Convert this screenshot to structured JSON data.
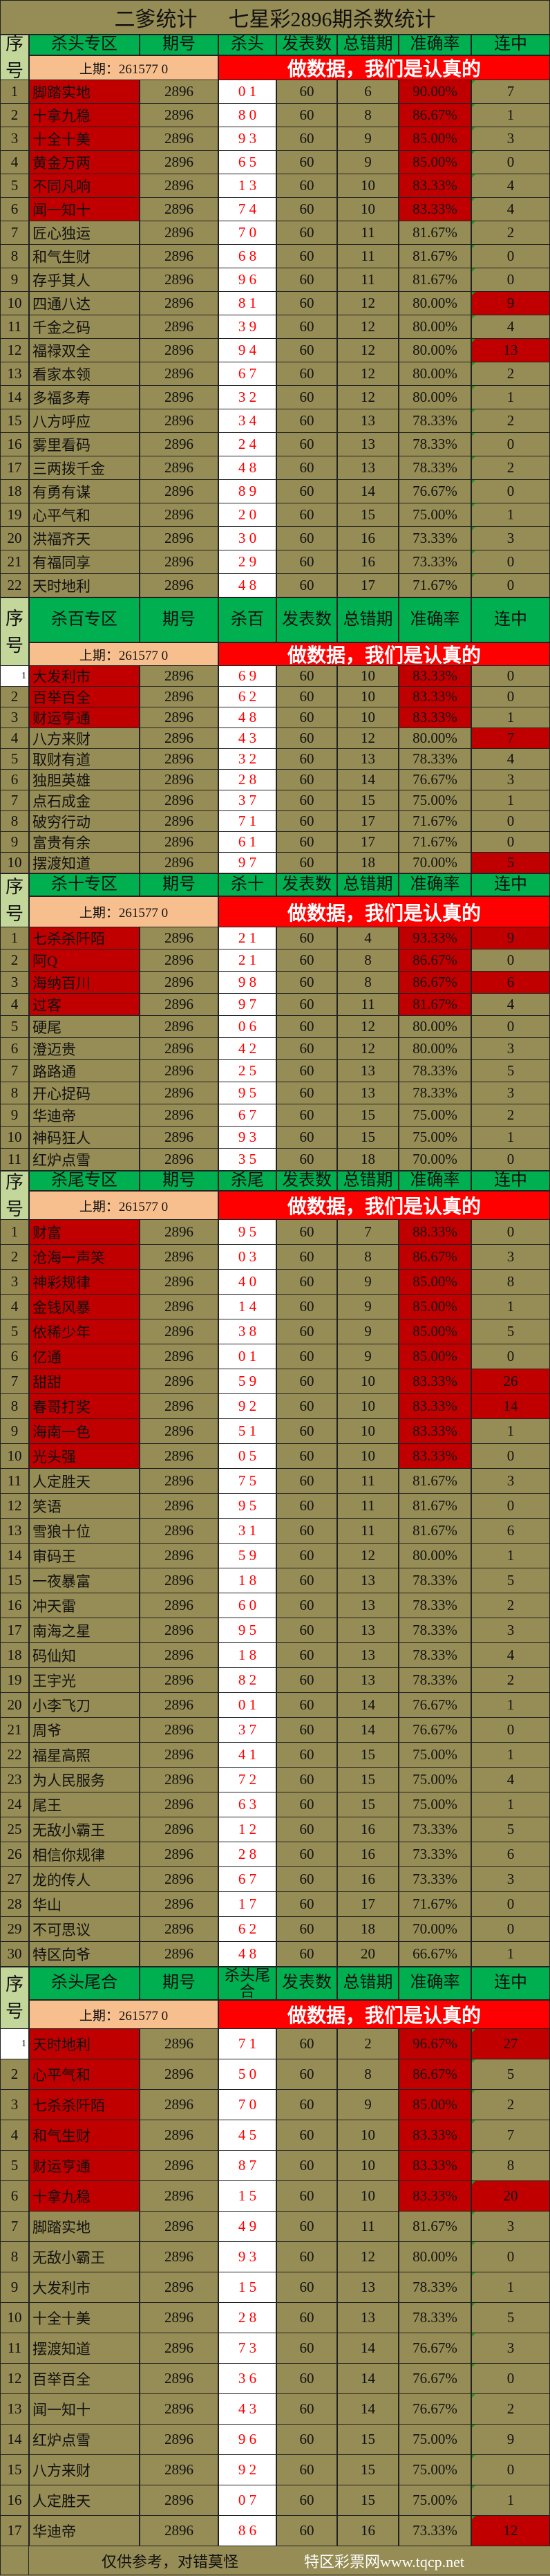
{
  "title": "二爹统计      七星彩2896期杀数统计",
  "columns": {
    "seq": [
      "序",
      "号"
    ],
    "period": "期号",
    "count": "发表数",
    "errors": "总错期",
    "rate": "准确率",
    "streak": "连中"
  },
  "prev_label": "上期：261577 0",
  "slogan": "做数据，我们是认真的",
  "colors": {
    "olive": "#968c55",
    "header_green": "#00b050",
    "highlight_red": "#c00000",
    "slogan_red": "#ff0000",
    "prev_peach": "#f8bf8e",
    "seq_green": "#c4d79b",
    "kill_text": "#ff0000"
  },
  "sections": [
    {
      "zone": "杀头专区",
      "kill_label": "杀头",
      "hot_rows": 6,
      "streak_hot": [
        10,
        12
      ],
      "rows": [
        [
          "1",
          "脚踏实地",
          "2896",
          "0 1",
          "60",
          "6",
          "90.00%",
          "7"
        ],
        [
          "2",
          "十拿九稳",
          "2896",
          "8 0",
          "60",
          "8",
          "86.67%",
          "1"
        ],
        [
          "3",
          "十全十美",
          "2896",
          "9 3",
          "60",
          "9",
          "85.00%",
          "3"
        ],
        [
          "4",
          "黄金万两",
          "2896",
          "6 5",
          "60",
          "9",
          "85.00%",
          "0"
        ],
        [
          "5",
          "不同凡响",
          "2896",
          "1 3",
          "60",
          "10",
          "83.33%",
          "4"
        ],
        [
          "6",
          "闻一知十",
          "2896",
          "7 4",
          "60",
          "10",
          "83.33%",
          "4"
        ],
        [
          "7",
          "匠心独运",
          "2896",
          "7 0",
          "60",
          "11",
          "81.67%",
          "2"
        ],
        [
          "8",
          "和气生财",
          "2896",
          "6 8",
          "60",
          "11",
          "81.67%",
          "0"
        ],
        [
          "9",
          "存乎其人",
          "2896",
          "9 6",
          "60",
          "11",
          "81.67%",
          "0"
        ],
        [
          "10",
          "四通八达",
          "2896",
          "8 1",
          "60",
          "12",
          "80.00%",
          "9"
        ],
        [
          "11",
          "千金之码",
          "2896",
          "3 9",
          "60",
          "12",
          "80.00%",
          "4"
        ],
        [
          "12",
          "福禄双全",
          "2896",
          "9 4",
          "60",
          "12",
          "80.00%",
          "13"
        ],
        [
          "13",
          "看家本领",
          "2896",
          "6 7",
          "60",
          "12",
          "80.00%",
          "2"
        ],
        [
          "14",
          "多福多寿",
          "2896",
          "3 2",
          "60",
          "12",
          "80.00%",
          "1"
        ],
        [
          "15",
          "八方呼应",
          "2896",
          "3 4",
          "60",
          "13",
          "78.33%",
          "2"
        ],
        [
          "16",
          "雾里看码",
          "2896",
          "2 4",
          "60",
          "13",
          "78.33%",
          "0"
        ],
        [
          "17",
          "三两拨千金",
          "2896",
          "4 8",
          "60",
          "13",
          "78.33%",
          "2"
        ],
        [
          "18",
          "有勇有谋",
          "2896",
          "8 9",
          "60",
          "14",
          "76.67%",
          "0"
        ],
        [
          "19",
          "心平气和",
          "2896",
          "2 0",
          "60",
          "15",
          "75.00%",
          "1"
        ],
        [
          "20",
          "洪福齐天",
          "2896",
          "3 0",
          "60",
          "16",
          "73.33%",
          "3"
        ],
        [
          "21",
          "有福同享",
          "2896",
          "2 9",
          "60",
          "16",
          "73.33%",
          "0"
        ],
        [
          "22",
          "天时地利",
          "2896",
          "4 8",
          "60",
          "17",
          "71.67%",
          "0"
        ]
      ]
    },
    {
      "zone": "杀百专区",
      "kill_label": "杀百",
      "hot_rows": 3,
      "streak_hot": [
        4,
        10
      ],
      "rows": [
        [
          "1",
          "大发利市",
          "2896",
          "6 9",
          "60",
          "10",
          "83.33%",
          "0"
        ],
        [
          "2",
          "百举百全",
          "2896",
          "6 2",
          "60",
          "10",
          "83.33%",
          "0"
        ],
        [
          "3",
          "财运亨通",
          "2896",
          "4 8",
          "60",
          "10",
          "83.33%",
          "1"
        ],
        [
          "4",
          "八方来财",
          "2896",
          "4 3",
          "60",
          "12",
          "80.00%",
          "7"
        ],
        [
          "5",
          "取财有道",
          "2896",
          "3 2",
          "60",
          "13",
          "78.33%",
          "4"
        ],
        [
          "6",
          "独胆英雄",
          "2896",
          "2 8",
          "60",
          "14",
          "76.67%",
          "3"
        ],
        [
          "7",
          "点石成金",
          "2896",
          "3 7",
          "60",
          "15",
          "75.00%",
          "1"
        ],
        [
          "8",
          "破穷行动",
          "2896",
          "7 1",
          "60",
          "17",
          "71.67%",
          "0"
        ],
        [
          "9",
          "富贵有余",
          "2896",
          "6 1",
          "60",
          "17",
          "71.67%",
          "0"
        ],
        [
          "10",
          "摆渡知道",
          "2896",
          "9 7",
          "60",
          "18",
          "70.00%",
          "5"
        ]
      ]
    },
    {
      "zone": "杀十专区",
      "kill_label": "杀十",
      "hot_rows": 4,
      "streak_hot": [
        1,
        3
      ],
      "rows": [
        [
          "1",
          "七杀杀阡陌",
          "2896",
          "2 1",
          "60",
          "4",
          "93.33%",
          "9"
        ],
        [
          "2",
          "阿Q",
          "2896",
          "2 1",
          "60",
          "8",
          "86.67%",
          "0"
        ],
        [
          "3",
          "海纳百川",
          "2896",
          "9 8",
          "60",
          "8",
          "86.67%",
          "6"
        ],
        [
          "4",
          "过客",
          "2896",
          "9 7",
          "60",
          "11",
          "81.67%",
          "4"
        ],
        [
          "5",
          "硬尾",
          "2896",
          "0 6",
          "60",
          "12",
          "80.00%",
          "0"
        ],
        [
          "6",
          "澄迈贵",
          "2896",
          "4 2",
          "60",
          "12",
          "80.00%",
          "3"
        ],
        [
          "7",
          "路路通",
          "2896",
          "2 5",
          "60",
          "13",
          "78.33%",
          "5"
        ],
        [
          "8",
          "开心捉码",
          "2896",
          "9 5",
          "60",
          "13",
          "78.33%",
          "3"
        ],
        [
          "9",
          "华迪帝",
          "2896",
          "6 7",
          "60",
          "15",
          "75.00%",
          "2"
        ],
        [
          "10",
          "神码狂人",
          "2896",
          "9 3",
          "60",
          "15",
          "75.00%",
          "1"
        ],
        [
          "11",
          "红炉点雪",
          "2896",
          "3 5",
          "60",
          "18",
          "70.00%",
          "0"
        ]
      ]
    },
    {
      "zone": "杀尾专区",
      "kill_label": "杀尾",
      "hot_rows": 10,
      "streak_hot": [
        7,
        8
      ],
      "rows": [
        [
          "1",
          "财富",
          "2896",
          "9 5",
          "60",
          "7",
          "88.33%",
          "0"
        ],
        [
          "2",
          "沧海一声笑",
          "2896",
          "0 3",
          "60",
          "8",
          "86.67%",
          "3"
        ],
        [
          "3",
          "神彩规律",
          "2896",
          "4 0",
          "60",
          "9",
          "85.00%",
          "8"
        ],
        [
          "4",
          "金钱风暴",
          "2896",
          "1 4",
          "60",
          "9",
          "85.00%",
          "1"
        ],
        [
          "5",
          "依稀少年",
          "2896",
          "3 8",
          "60",
          "9",
          "85.00%",
          "5"
        ],
        [
          "6",
          "亿通",
          "2896",
          "0 1",
          "60",
          "9",
          "85.00%",
          "0"
        ],
        [
          "7",
          "甜甜",
          "2896",
          "5 9",
          "60",
          "10",
          "83.33%",
          "26"
        ],
        [
          "8",
          "春哥打奖",
          "2896",
          "9 2",
          "60",
          "10",
          "83.33%",
          "14"
        ],
        [
          "9",
          "海南一色",
          "2896",
          "5 1",
          "60",
          "10",
          "83.33%",
          "1"
        ],
        [
          "10",
          "光头强",
          "2896",
          "0 5",
          "60",
          "10",
          "83.33%",
          "0"
        ],
        [
          "11",
          "人定胜天",
          "2896",
          "7 5",
          "60",
          "11",
          "81.67%",
          "3"
        ],
        [
          "12",
          "笑语",
          "2896",
          "9 5",
          "60",
          "11",
          "81.67%",
          "0"
        ],
        [
          "13",
          "雪狼十位",
          "2896",
          "3 1",
          "60",
          "11",
          "81.67%",
          "6"
        ],
        [
          "14",
          "审码王",
          "2896",
          "5 9",
          "60",
          "12",
          "80.00%",
          "1"
        ],
        [
          "15",
          "一夜暴富",
          "2896",
          "1 8",
          "60",
          "13",
          "78.33%",
          "5"
        ],
        [
          "16",
          "冲天雷",
          "2896",
          "6 0",
          "60",
          "13",
          "78.33%",
          "2"
        ],
        [
          "17",
          "南海之星",
          "2896",
          "9 5",
          "60",
          "13",
          "78.33%",
          "3"
        ],
        [
          "18",
          "码仙知",
          "2896",
          "1 8",
          "60",
          "13",
          "78.33%",
          "4"
        ],
        [
          "19",
          "王宇光",
          "2896",
          "8 2",
          "60",
          "13",
          "78.33%",
          "2"
        ],
        [
          "20",
          "小李飞刀",
          "2896",
          "0 1",
          "60",
          "14",
          "76.67%",
          "1"
        ],
        [
          "21",
          "周爷",
          "2896",
          "3 7",
          "60",
          "14",
          "76.67%",
          "0"
        ],
        [
          "22",
          "福星高照",
          "2896",
          "4 1",
          "60",
          "15",
          "75.00%",
          "1"
        ],
        [
          "23",
          "为人民服务",
          "2896",
          "7 2",
          "60",
          "15",
          "75.00%",
          "4"
        ],
        [
          "24",
          "尾王",
          "2896",
          "6 3",
          "60",
          "15",
          "75.00%",
          "1"
        ],
        [
          "25",
          "无敌小霸王",
          "2896",
          "1 2",
          "60",
          "16",
          "73.33%",
          "5"
        ],
        [
          "26",
          "相信你规律",
          "2896",
          "2 8",
          "60",
          "16",
          "73.33%",
          "6"
        ],
        [
          "27",
          "龙的传人",
          "2896",
          "6 7",
          "60",
          "16",
          "73.33%",
          "3"
        ],
        [
          "28",
          "华山",
          "2896",
          "1 7",
          "60",
          "17",
          "71.67%",
          "0"
        ],
        [
          "29",
          "不可思议",
          "2896",
          "6 2",
          "60",
          "18",
          "70.00%",
          "0"
        ],
        [
          "30",
          "特区向爷",
          "2896",
          "4 8",
          "60",
          "20",
          "66.67%",
          "1"
        ]
      ]
    },
    {
      "zone": "杀头尾合",
      "kill_label": "杀头尾合",
      "hot_rows": 6,
      "streak_hot": [
        1,
        6,
        17
      ],
      "rows": [
        [
          "1",
          "天时地利",
          "2896",
          "7 1",
          "60",
          "2",
          "96.67%",
          "27"
        ],
        [
          "2",
          "心平气和",
          "2896",
          "5 0",
          "60",
          "8",
          "86.67%",
          "5"
        ],
        [
          "3",
          "七杀杀阡陌",
          "2896",
          "7 0",
          "60",
          "9",
          "85.00%",
          "2"
        ],
        [
          "4",
          "和气生财",
          "2896",
          "4 5",
          "60",
          "10",
          "83.33%",
          "7"
        ],
        [
          "5",
          "财运亨通",
          "2896",
          "8 7",
          "60",
          "10",
          "83.33%",
          "8"
        ],
        [
          "6",
          "十拿九稳",
          "2896",
          "1 5",
          "60",
          "10",
          "83.33%",
          "20"
        ],
        [
          "7",
          "脚踏实地",
          "2896",
          "4 9",
          "60",
          "11",
          "81.67%",
          "3"
        ],
        [
          "8",
          "无敌小霸王",
          "2896",
          "9 3",
          "60",
          "12",
          "80.00%",
          "0"
        ],
        [
          "9",
          "大发利市",
          "2896",
          "1 5",
          "60",
          "13",
          "78.33%",
          "1"
        ],
        [
          "10",
          "十全十美",
          "2896",
          "2 8",
          "60",
          "13",
          "78.33%",
          "5"
        ],
        [
          "11",
          "摆渡知道",
          "2896",
          "7 3",
          "60",
          "14",
          "76.67%",
          "3"
        ],
        [
          "12",
          "百举百全",
          "2896",
          "3 6",
          "60",
          "14",
          "76.67%",
          "0"
        ],
        [
          "13",
          "闻一知十",
          "2896",
          "4 3",
          "60",
          "14",
          "76.67%",
          "2"
        ],
        [
          "14",
          "红炉点雪",
          "2896",
          "9 6",
          "60",
          "15",
          "75.00%",
          "9"
        ],
        [
          "15",
          "八方来财",
          "2896",
          "9 2",
          "60",
          "15",
          "75.00%",
          "0"
        ],
        [
          "16",
          "人定胜天",
          "2896",
          "0 7",
          "60",
          "15",
          "75.00%",
          "1"
        ],
        [
          "17",
          "华迪帝",
          "2896",
          "8 6",
          "60",
          "16",
          "73.33%",
          "12"
        ]
      ]
    }
  ],
  "footer": {
    "note": "仅供参考，对错莫怪",
    "site": "特区彩票网www.tqcp.net"
  }
}
